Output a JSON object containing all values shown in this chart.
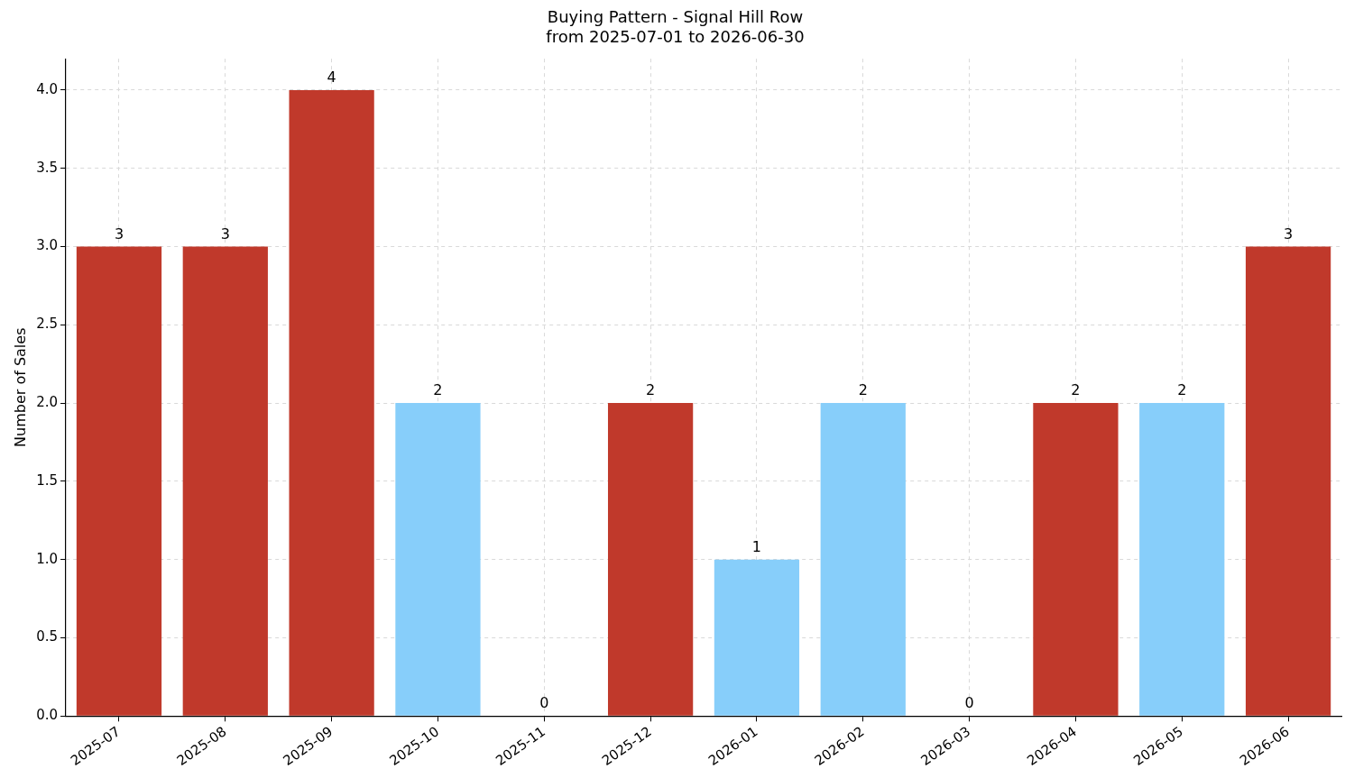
{
  "chart_data": {
    "type": "bar",
    "title": "Buying Pattern - Signal Hill Row",
    "subtitle": "from 2025-07-01 to 2026-06-30",
    "ylabel": "Number of Sales",
    "categories": [
      "2025-07",
      "2025-08",
      "2025-09",
      "2025-10",
      "2025-11",
      "2025-12",
      "2026-01",
      "2026-02",
      "2026-03",
      "2026-04",
      "2026-05",
      "2026-06"
    ],
    "values": [
      3,
      3,
      4,
      2,
      0,
      2,
      1,
      2,
      0,
      2,
      2,
      3
    ],
    "colors": [
      "#c0392b",
      "#c0392b",
      "#c0392b",
      "#87cefa",
      "#87cefa",
      "#c0392b",
      "#87cefa",
      "#87cefa",
      "#87cefa",
      "#c0392b",
      "#87cefa",
      "#c0392b"
    ],
    "ylim": [
      0,
      4.2
    ],
    "yticks": [
      {
        "value": 0,
        "label": "0.0"
      },
      {
        "value": 0.5,
        "label": "0.5"
      },
      {
        "value": 1,
        "label": "1.0"
      },
      {
        "value": 1.5,
        "label": "1.5"
      },
      {
        "value": 2,
        "label": "2.0"
      },
      {
        "value": 2.5,
        "label": "2.5"
      },
      {
        "value": 3,
        "label": "3.0"
      },
      {
        "value": 3.5,
        "label": "3.5"
      },
      {
        "value": 4,
        "label": "4.0"
      }
    ],
    "grid": true,
    "data_labels": true
  }
}
